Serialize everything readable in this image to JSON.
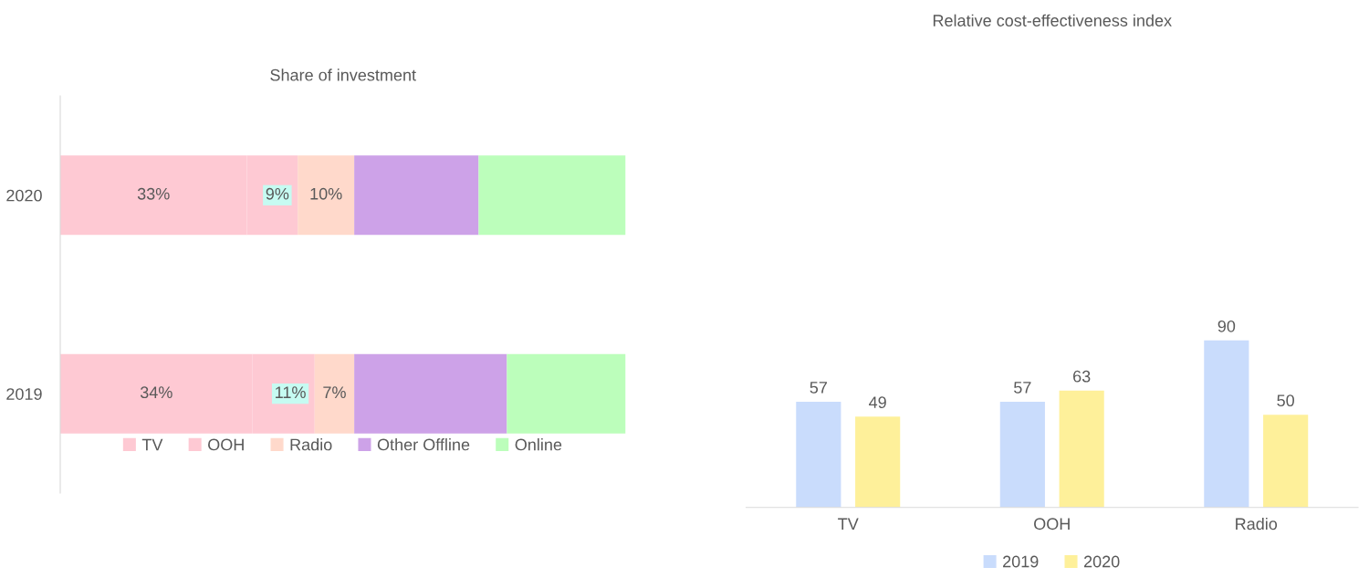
{
  "chart_data": [
    {
      "type": "bar",
      "title": "Share of investment",
      "orientation": "horizontal",
      "stacked": true,
      "categories": [
        "2020",
        "2019"
      ],
      "legend": "bottom",
      "series": [
        {
          "name": "TV",
          "color": "#fec9d3",
          "values": [
            33,
            34
          ],
          "value_labels": [
            "33%",
            "34%"
          ]
        },
        {
          "name": "OOH",
          "color": "#fec9d3",
          "values": [
            9,
            11
          ],
          "value_labels": [
            "9%",
            "11%"
          ]
        },
        {
          "name": "Radio",
          "color": "#ffd9cb",
          "values": [
            10,
            7
          ],
          "value_labels": [
            "10%",
            "7%"
          ]
        },
        {
          "name": "Other Offline",
          "color": "#cda2e8",
          "values": [
            22,
            27
          ],
          "value_labels": [
            null,
            null
          ]
        },
        {
          "name": "Online",
          "color": "#bcfebb",
          "values": [
            26,
            21
          ],
          "value_labels": [
            null,
            null
          ]
        }
      ]
    },
    {
      "type": "bar",
      "title": "Relative cost-effectiveness index",
      "categories": [
        "TV",
        "OOH",
        "Radio"
      ],
      "legend": "bottom",
      "data_labels": true,
      "tick_labels": "x",
      "series": [
        {
          "name": "2019",
          "color": "#c9dcfc",
          "values": [
            57,
            57,
            90
          ]
        },
        {
          "name": "2020",
          "color": "#fef09a",
          "values": [
            49,
            63,
            50
          ]
        }
      ]
    }
  ]
}
